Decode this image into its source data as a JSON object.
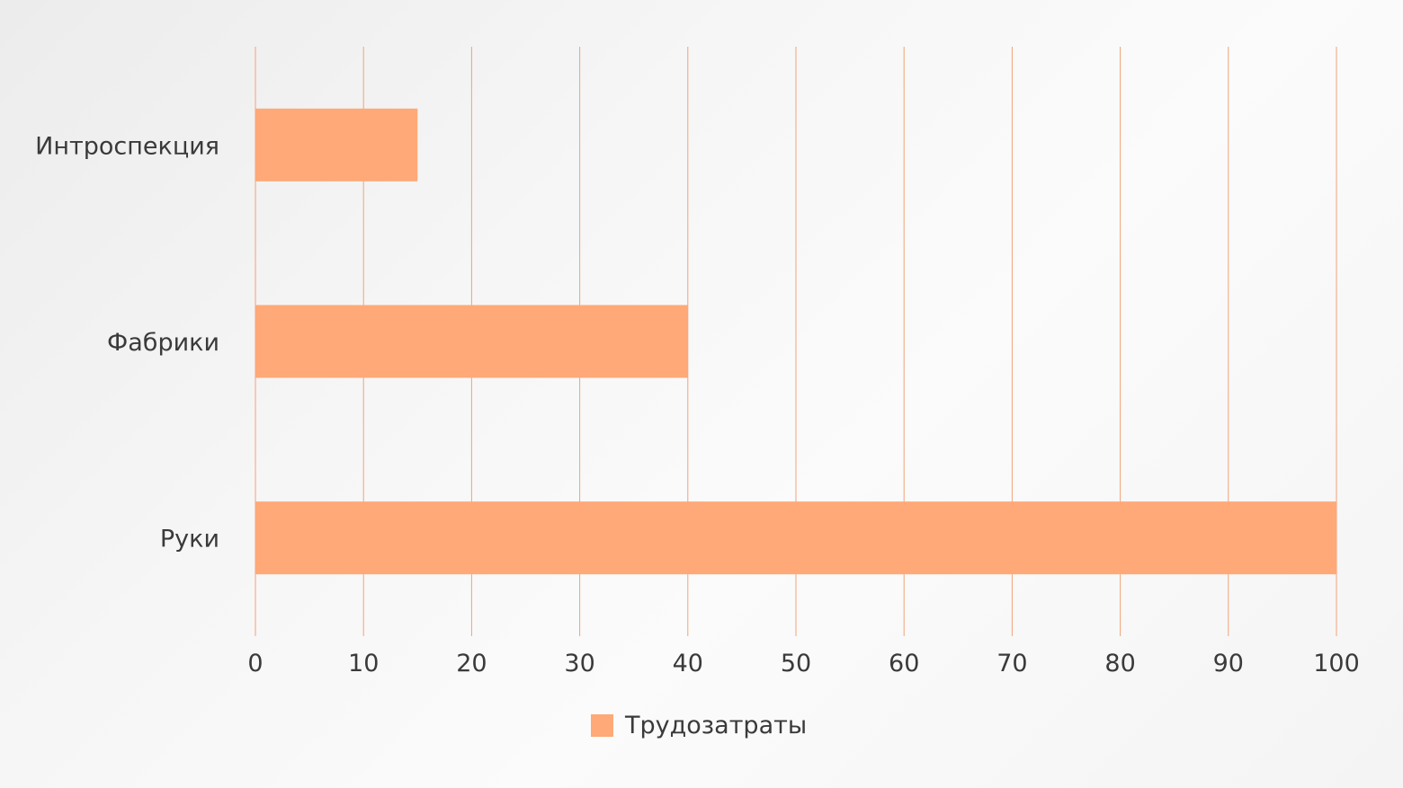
{
  "chart_data": {
    "type": "bar",
    "orientation": "horizontal",
    "categories": [
      "Интроспекция",
      "Фабрики",
      "Руки"
    ],
    "series": [
      {
        "name": "Трудозатраты",
        "values": [
          15,
          40,
          100
        ],
        "color": "#FEA977"
      }
    ],
    "xlim": [
      0,
      100
    ],
    "x_ticks": [
      0,
      10,
      20,
      30,
      40,
      50,
      60,
      70,
      80,
      90,
      100
    ],
    "grid": true,
    "grid_color": "#F4A278",
    "legend_position": "bottom"
  }
}
